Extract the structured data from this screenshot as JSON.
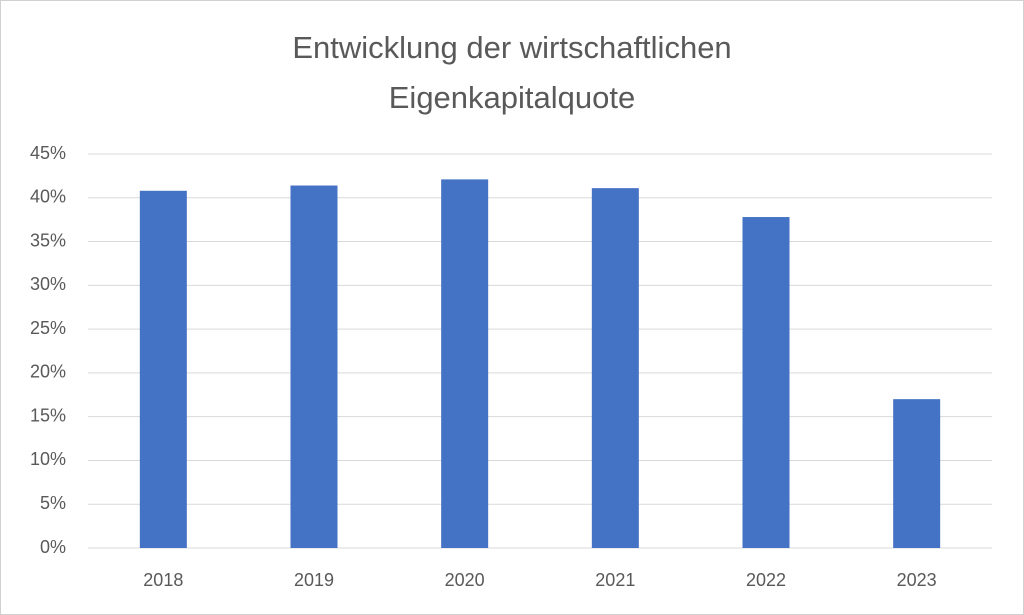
{
  "chart_data": {
    "type": "bar",
    "title": [
      "Entwicklung der wirtschaftlichen",
      "Eigenkapitalquote"
    ],
    "categories": [
      "2018",
      "2019",
      "2020",
      "2021",
      "2022",
      "2023"
    ],
    "values": [
      40.8,
      41.4,
      42.1,
      41.1,
      37.8,
      17.0
    ],
    "color": "#4472c4",
    "ylim": [
      0,
      45
    ],
    "yticks": [
      {
        "value": 0,
        "label": "0%"
      },
      {
        "value": 5,
        "label": "5%"
      },
      {
        "value": 10,
        "label": "10%"
      },
      {
        "value": 15,
        "label": "15%"
      },
      {
        "value": 20,
        "label": "20%"
      },
      {
        "value": 25,
        "label": "25%"
      },
      {
        "value": 30,
        "label": "30%"
      },
      {
        "value": 35,
        "label": "35%"
      },
      {
        "value": 40,
        "label": "40%"
      },
      {
        "value": 45,
        "label": "45%"
      }
    ],
    "grid": true
  }
}
